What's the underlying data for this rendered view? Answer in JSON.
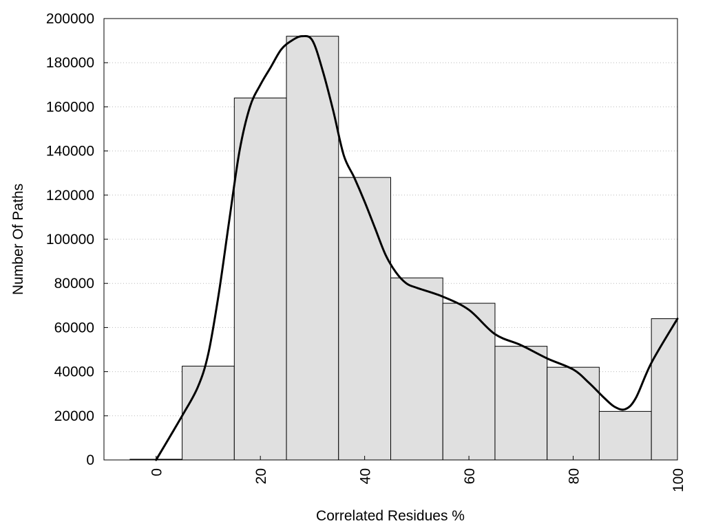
{
  "chart_data": {
    "type": "bar",
    "title": "",
    "xlabel": "Correlated Residues %",
    "ylabel": "Number Of Paths",
    "xlim": [
      -10,
      100
    ],
    "ylim": [
      0,
      200000
    ],
    "x_ticks": [
      0,
      20,
      40,
      60,
      80,
      100
    ],
    "y_ticks": [
      0,
      20000,
      40000,
      60000,
      80000,
      100000,
      120000,
      140000,
      160000,
      180000,
      200000
    ],
    "grid": "horizontal dotted",
    "legend": "none",
    "bar_width": 10,
    "bars": [
      {
        "x": 0,
        "value": 0
      },
      {
        "x": 10,
        "value": 42500
      },
      {
        "x": 20,
        "value": 164000
      },
      {
        "x": 30,
        "value": 192000
      },
      {
        "x": 40,
        "value": 128000
      },
      {
        "x": 50,
        "value": 82500
      },
      {
        "x": 60,
        "value": 71000
      },
      {
        "x": 70,
        "value": 51500
      },
      {
        "x": 80,
        "value": 42000
      },
      {
        "x": 90,
        "value": 22000
      },
      {
        "x": 100,
        "value": 64000
      }
    ],
    "curve": {
      "x": [
        0,
        5,
        8,
        10,
        12,
        14,
        16,
        18,
        20,
        22,
        24,
        26,
        28,
        30,
        32,
        34,
        36,
        38,
        40,
        42,
        44,
        46,
        48,
        50,
        55,
        60,
        65,
        70,
        75,
        80,
        83,
        86,
        88,
        90,
        92,
        95,
        100
      ],
      "y": [
        0,
        20000,
        33000,
        48000,
        75000,
        108000,
        140000,
        160000,
        170000,
        178000,
        186000,
        190000,
        192000,
        190000,
        176000,
        158000,
        138000,
        128000,
        117000,
        105000,
        93000,
        85000,
        80000,
        78000,
        74000,
        68000,
        57000,
        52000,
        46000,
        41000,
        35000,
        28000,
        24000,
        23000,
        28000,
        44000,
        64000
      ]
    },
    "colors": {
      "bar_fill": "#e0e0e0",
      "bar_edge": "#000000",
      "curve": "#000000",
      "grid": "#b8b8b8"
    }
  }
}
